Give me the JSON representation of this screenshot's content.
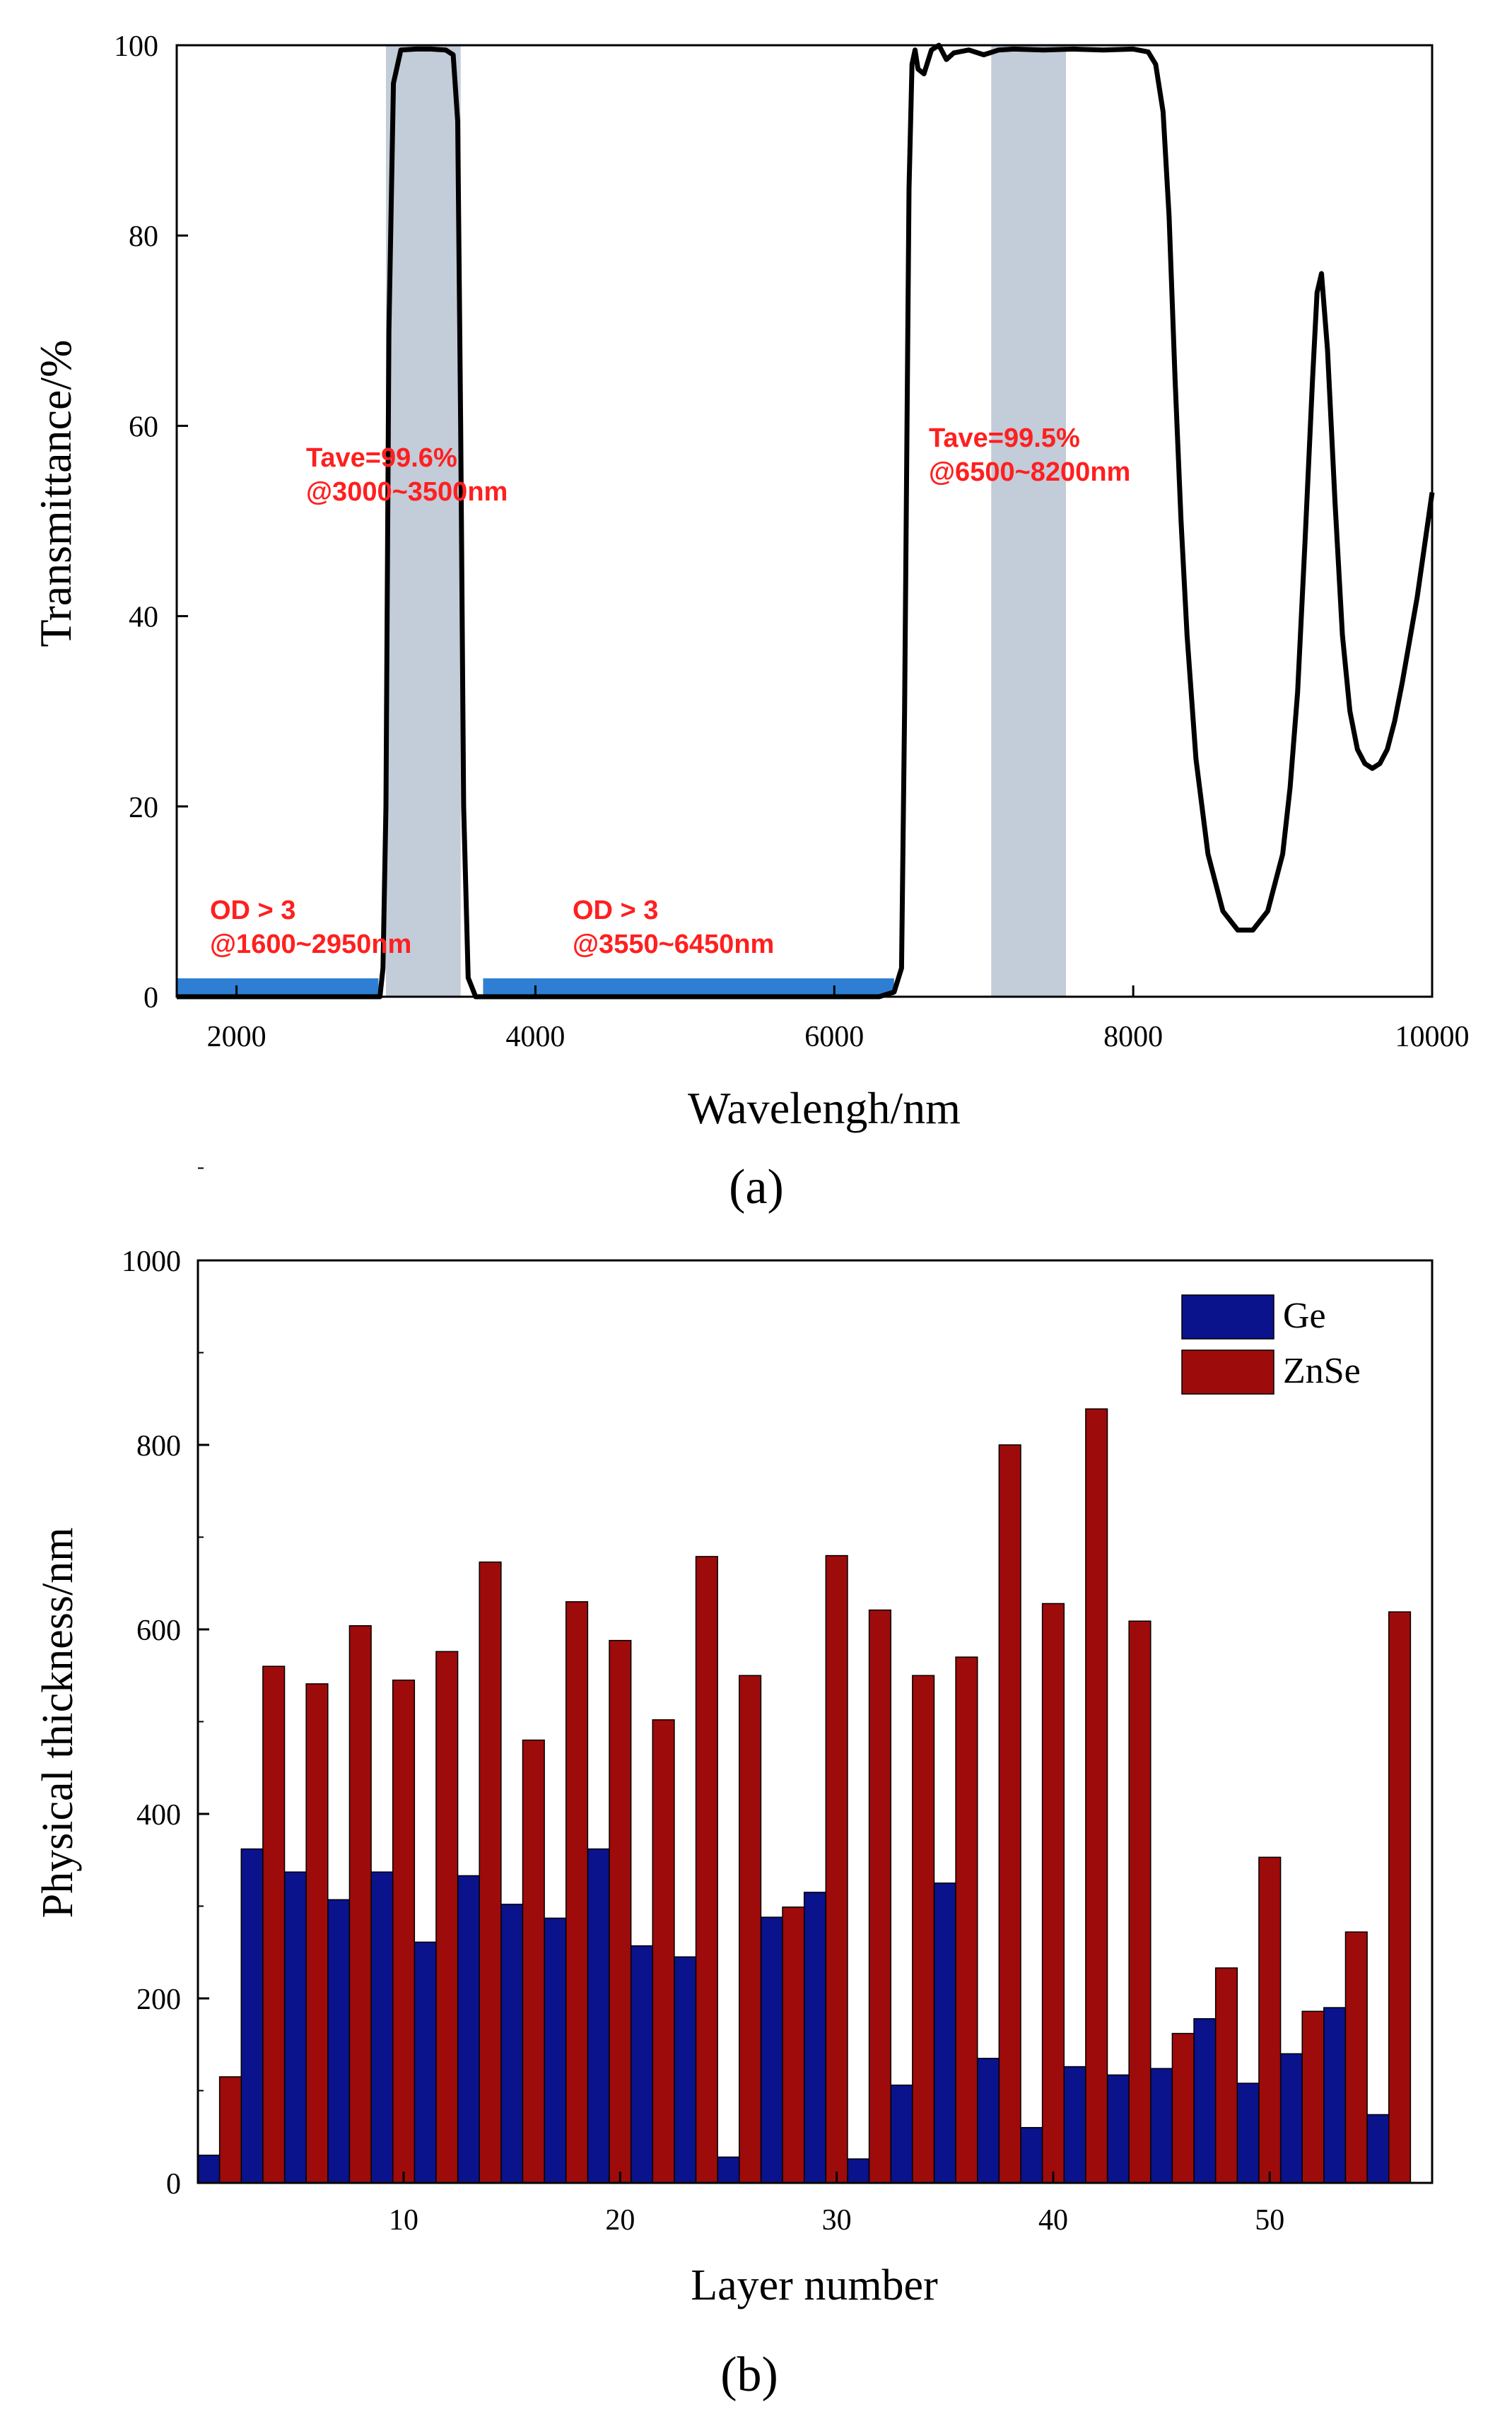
{
  "chart_data": [
    {
      "panel_label": "(a)",
      "type": "line",
      "title": "",
      "xlabel": "Wavelengh/nm",
      "ylabel": "Transmittance/%",
      "xlim": [
        1600,
        10000
      ],
      "ylim": [
        0,
        100
      ],
      "xticks": [
        2000,
        4000,
        6000,
        8000,
        10000
      ],
      "yticks": [
        0,
        20,
        40,
        60,
        80,
        100
      ],
      "grid": false,
      "series": [
        {
          "name": "Transmittance",
          "color": "#000000",
          "x": [
            1600,
            2900,
            2960,
            2980,
            3000,
            3020,
            3050,
            3100,
            3200,
            3300,
            3400,
            3450,
            3480,
            3500,
            3520,
            3550,
            3600,
            3700,
            4000,
            5000,
            6000,
            6300,
            6400,
            6450,
            6470,
            6500,
            6520,
            6540,
            6560,
            6600,
            6650,
            6700,
            6750,
            6800,
            6900,
            7000,
            7100,
            7200,
            7400,
            7600,
            7800,
            8000,
            8100,
            8150,
            8200,
            8240,
            8280,
            8320,
            8360,
            8420,
            8500,
            8600,
            8700,
            8800,
            8900,
            9000,
            9050,
            9100,
            9150,
            9200,
            9230,
            9260,
            9300,
            9350,
            9400,
            9450,
            9500,
            9550,
            9600,
            9650,
            9700,
            9750,
            9800,
            9900,
            10000
          ],
          "values": [
            0,
            0,
            0,
            3,
            20,
            70,
            96,
            99.5,
            99.6,
            99.6,
            99.5,
            99,
            92,
            60,
            20,
            2,
            0,
            0,
            0,
            0,
            0,
            0,
            0.5,
            3,
            30,
            85,
            98,
            99.5,
            97.5,
            97,
            99.5,
            100,
            98.5,
            99.2,
            99.5,
            99,
            99.5,
            99.6,
            99.5,
            99.6,
            99.5,
            99.6,
            99.3,
            98,
            93,
            82,
            65,
            50,
            38,
            25,
            15,
            9,
            7,
            7,
            9,
            15,
            22,
            32,
            48,
            65,
            74,
            76,
            68,
            52,
            38,
            30,
            26,
            24.5,
            24,
            24.5,
            26,
            29,
            33,
            42,
            53
          ]
        }
      ],
      "shaded_regions": [
        {
          "x_range": [
            3000,
            3500
          ],
          "color": "#c3ccd9"
        },
        {
          "x_range": [
            7050,
            7550
          ],
          "color": "#c3ccd9"
        }
      ],
      "blocking_bars": [
        {
          "x_range": [
            1600,
            2950
          ],
          "color": "#2e7fd3"
        },
        {
          "x_range": [
            3650,
            6400
          ],
          "color": "#2e7fd3"
        }
      ],
      "annotations": [
        {
          "lines": [
            "Tave=99.6%",
            "@3000~3500nm"
          ],
          "color": "#ff1f1f"
        },
        {
          "lines": [
            "Tave=99.5%",
            "@6500~8200nm"
          ],
          "color": "#ff1f1f"
        },
        {
          "lines": [
            "OD > 3",
            "@1600~2950nm"
          ],
          "color": "#ff1f1f"
        },
        {
          "lines": [
            "OD > 3",
            "@3550~6450nm"
          ],
          "color": "#ff1f1f"
        }
      ]
    },
    {
      "panel_label": "(b)",
      "type": "bar",
      "title": "",
      "xlabel": "Layer number",
      "ylabel": "Physical thickness/nm",
      "xlim": [
        0.5,
        57.5
      ],
      "ylim": [
        0,
        1000
      ],
      "xticks": [
        10,
        20,
        30,
        40,
        50
      ],
      "yticks": [
        0,
        200,
        400,
        600,
        800,
        1000
      ],
      "legend_position": "top-right",
      "layers": [
        1,
        2,
        3,
        4,
        5,
        6,
        7,
        8,
        9,
        10,
        11,
        12,
        13,
        14,
        15,
        16,
        17,
        18,
        19,
        20,
        21,
        22,
        23,
        24,
        25,
        26,
        27,
        28,
        29,
        30,
        31,
        32,
        33,
        34,
        35,
        36,
        37,
        38,
        39,
        40,
        41,
        42,
        43,
        44,
        45,
        46,
        47,
        48,
        49,
        50,
        51,
        52,
        53,
        54,
        55,
        56,
        57
      ],
      "series": [
        {
          "name": "Ge",
          "color": "#0a128c",
          "layers": [
            1,
            3,
            5,
            7,
            9,
            11,
            13,
            15,
            17,
            19,
            21,
            23,
            25,
            27,
            29,
            31,
            33,
            35,
            37,
            39,
            41,
            43,
            45,
            47,
            49,
            51,
            53,
            55
          ],
          "values": [
            30,
            362,
            337,
            307,
            337,
            261,
            333,
            302,
            287,
            362,
            257,
            245,
            28,
            288,
            315,
            26,
            106,
            325,
            135,
            60,
            126,
            117,
            124,
            178,
            108,
            140,
            190,
            74
          ]
        },
        {
          "name": "ZnSe",
          "color": "#9e0b0b",
          "layers": [
            2,
            4,
            6,
            8,
            10,
            12,
            14,
            16,
            18,
            20,
            22,
            24,
            26,
            28,
            30,
            32,
            34,
            36,
            38,
            40,
            42,
            44,
            46,
            48,
            50,
            52,
            54,
            56
          ],
          "values": [
            115,
            560,
            541,
            604,
            545,
            576,
            673,
            480,
            630,
            588,
            502,
            679,
            550,
            299,
            680,
            621,
            550,
            570,
            800,
            628,
            839,
            609,
            162,
            233,
            353,
            186,
            272,
            619
          ]
        }
      ]
    }
  ]
}
